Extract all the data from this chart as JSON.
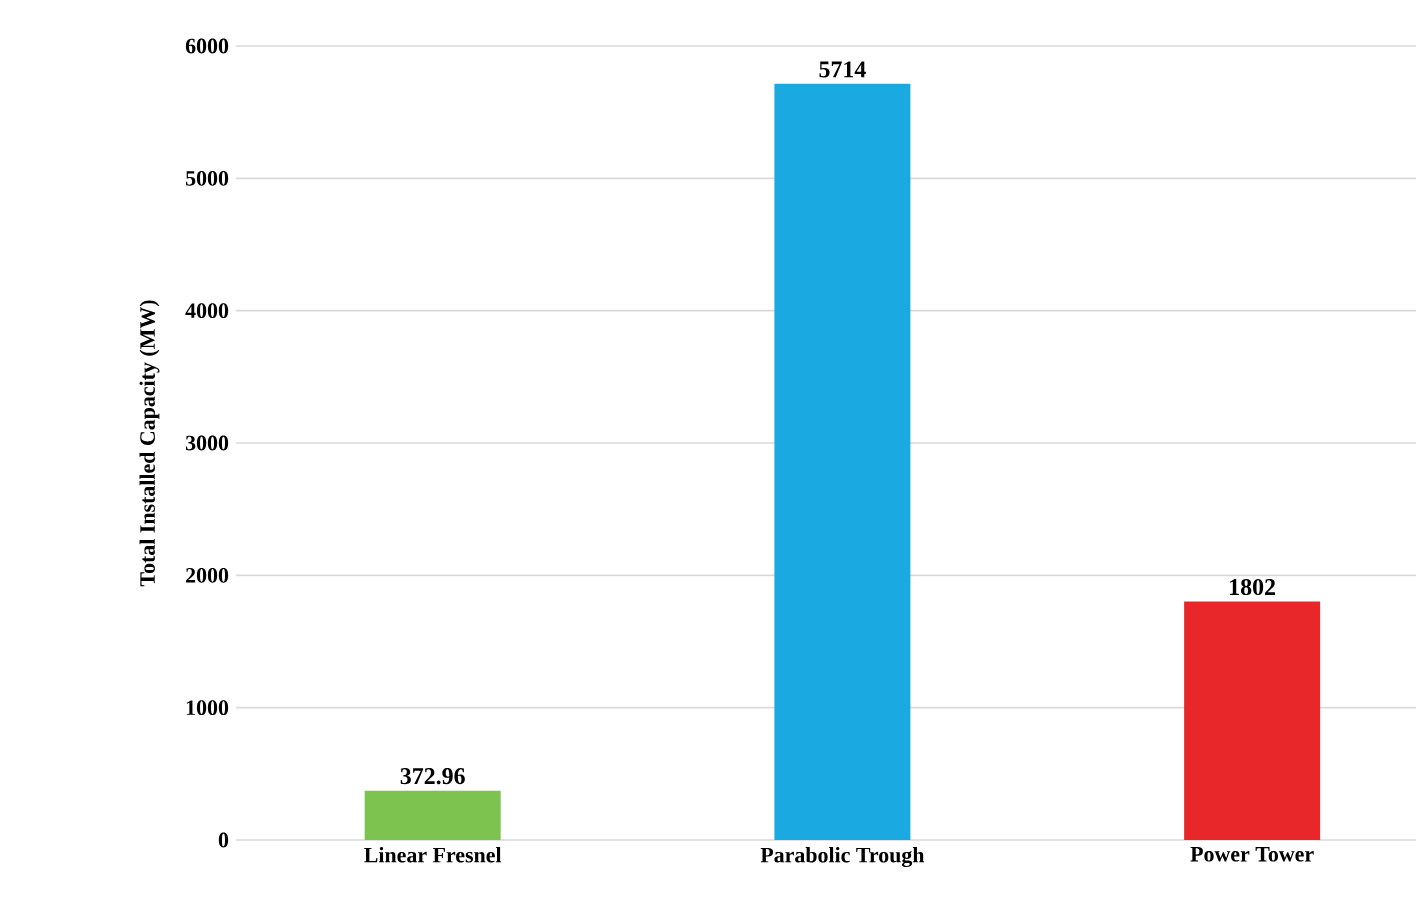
{
  "chart_data": {
    "type": "bar",
    "ylabel": "Total Installed Capacity (MW)",
    "categories": [
      "Linear Fresnel",
      "Parabolic Trough",
      "Power Tower"
    ],
    "values": [
      372.96,
      5714,
      1802
    ],
    "colors": [
      "#7dc34f",
      "#1aa9e0",
      "#e8272a"
    ],
    "ylim": [
      0,
      6000
    ],
    "yticks": [
      0,
      1000,
      2000,
      3000,
      4000,
      5000,
      6000
    ],
    "grid": "y",
    "data_labels": true
  }
}
